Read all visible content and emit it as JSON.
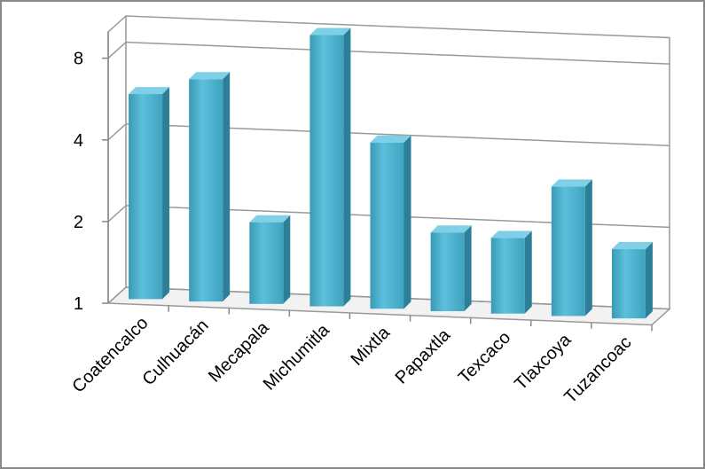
{
  "chart_data": {
    "type": "bar3d",
    "categories": [
      "Coatencalco",
      "Culhuacán",
      "Mecapala",
      "Michumitla",
      "Mixtla",
      "Papaxtla",
      "Texcaco",
      "Tlaxcoya",
      "Tuzancoac"
    ],
    "values": [
      5.7,
      6.6,
      2.0,
      10,
      4.1,
      1.95,
      1.9,
      3.0,
      1.8
    ],
    "color": "#4bacc6",
    "log_scale": true,
    "ylim": [
      1,
      10
    ],
    "yticks": [
      1,
      2,
      4,
      8
    ],
    "grid": true
  }
}
